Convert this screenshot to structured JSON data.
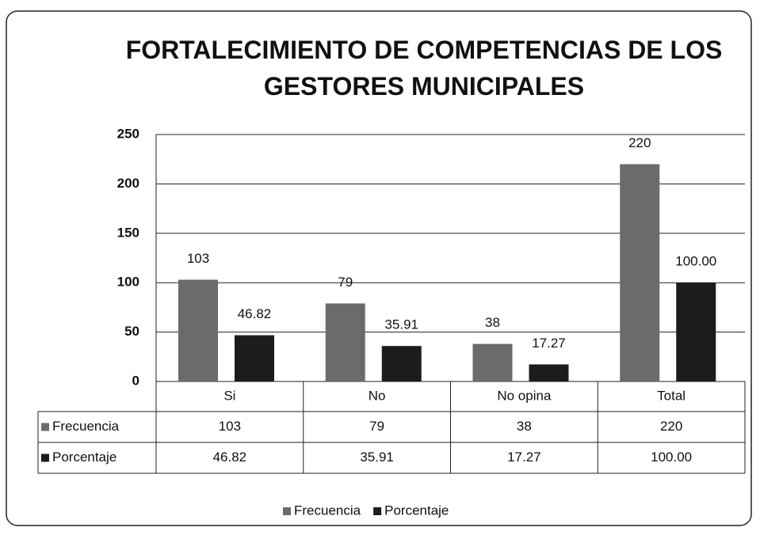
{
  "chart_data": {
    "type": "bar",
    "title": "FORTALECIMIENTO DE COMPETENCIAS DE LOS GESTORES MUNICIPALES",
    "categories": [
      "Si",
      "No",
      "No opina",
      "Total"
    ],
    "series": [
      {
        "name": "Frecuencia",
        "color": "#6b6b6b",
        "values": [
          103,
          79,
          38,
          220
        ]
      },
      {
        "name": "Porcentaje",
        "color": "#1c1c1c",
        "values": [
          46.82,
          35.91,
          17.27,
          100
        ],
        "value_labels": [
          "46.82",
          "35.91",
          "17.27",
          "100.00"
        ]
      }
    ],
    "ylim": [
      0,
      250
    ],
    "yticks": [
      0,
      50,
      100,
      150,
      200,
      250
    ],
    "grid": true
  }
}
